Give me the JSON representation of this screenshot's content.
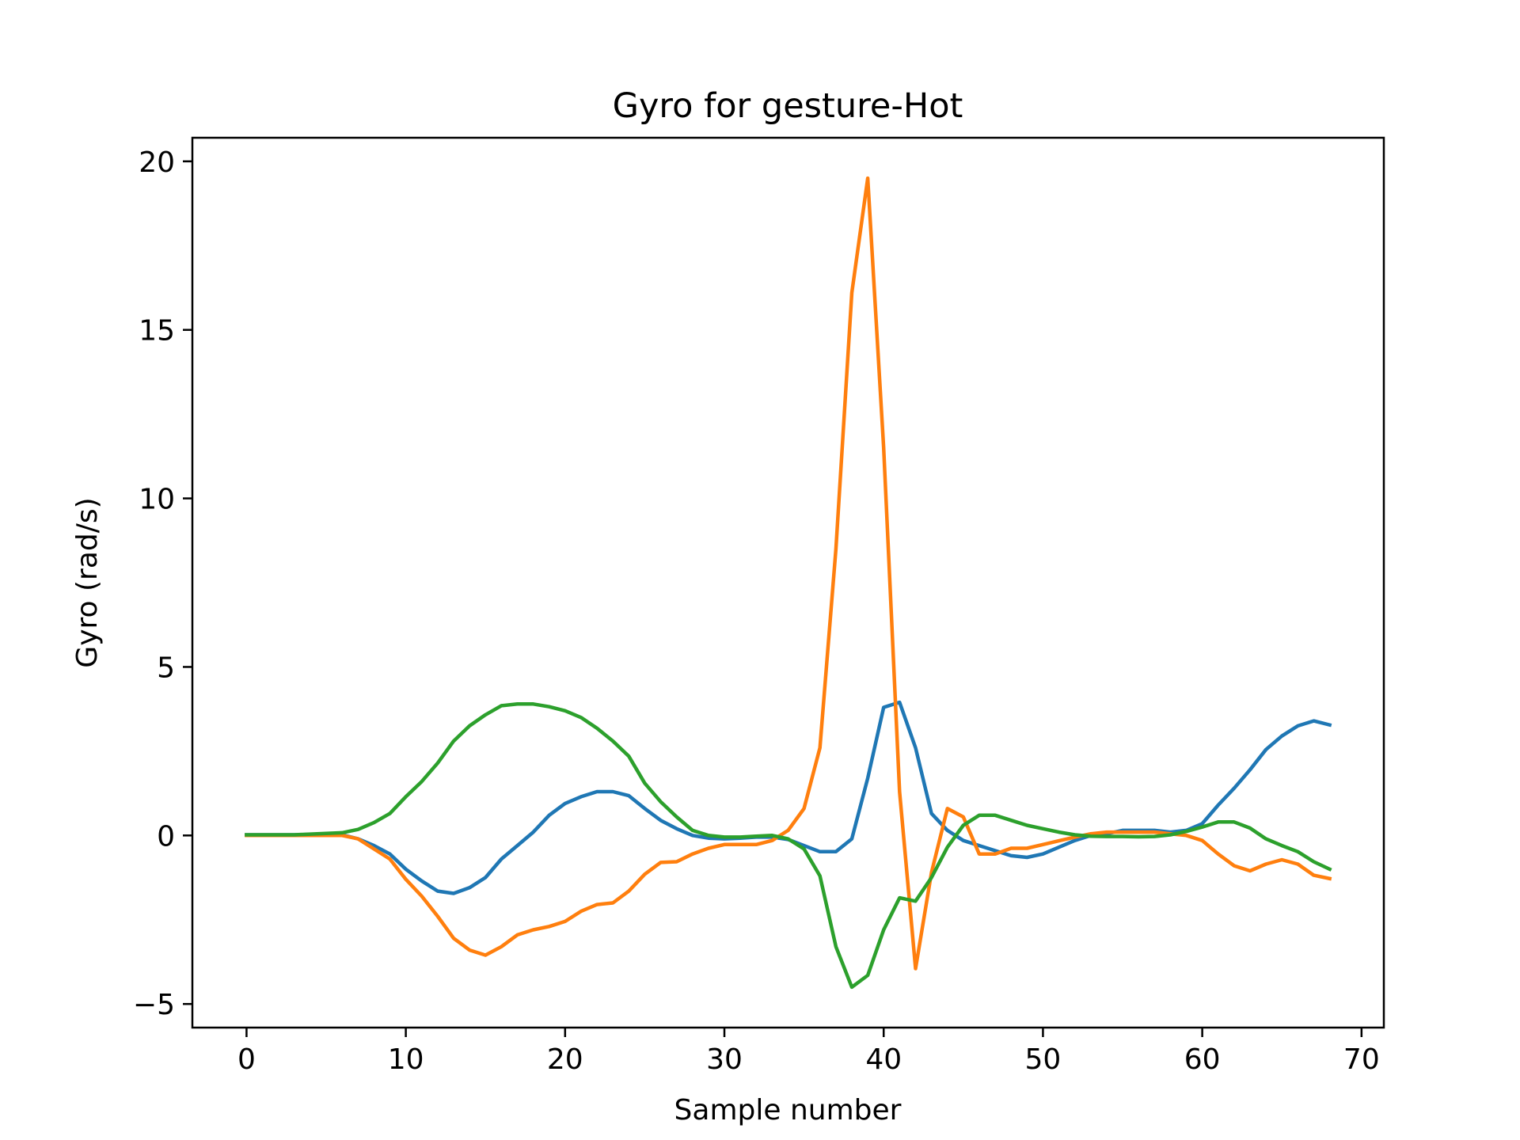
{
  "chart_data": {
    "type": "line",
    "title": "Gyro for gesture-Hot",
    "xlabel": "Sample number",
    "ylabel": "Gyro  (rad/s)",
    "xlim": [
      -3.4,
      71.4
    ],
    "ylim": [
      -5.7,
      20.7
    ],
    "xticks": [
      0,
      10,
      20,
      30,
      40,
      50,
      60,
      70
    ],
    "xtick_labels": [
      "0",
      "10",
      "20",
      "30",
      "40",
      "50",
      "60",
      "70"
    ],
    "yticks": [
      -5,
      0,
      5,
      10,
      15,
      20
    ],
    "ytick_labels": [
      "−5",
      "0",
      "5",
      "10",
      "15",
      "20"
    ],
    "grid": false,
    "x": [
      0,
      1,
      2,
      3,
      4,
      5,
      6,
      7,
      8,
      9,
      10,
      11,
      12,
      13,
      14,
      15,
      16,
      17,
      18,
      19,
      20,
      21,
      22,
      23,
      24,
      25,
      26,
      27,
      28,
      29,
      30,
      31,
      32,
      33,
      34,
      35,
      36,
      37,
      38,
      39,
      40,
      41,
      42,
      43,
      44,
      45,
      46,
      47,
      48,
      49,
      50,
      51,
      52,
      53,
      54,
      55,
      56,
      57,
      58,
      59,
      60,
      61,
      62,
      63,
      64,
      65,
      66,
      67,
      68
    ],
    "series": [
      {
        "color": "#1f77b4",
        "values": [
          0.02,
          0.02,
          0.02,
          0.02,
          0.03,
          0.04,
          0.02,
          -0.1,
          -0.3,
          -0.55,
          -1.0,
          -1.35,
          -1.65,
          -1.72,
          -1.55,
          -1.25,
          -0.7,
          -0.3,
          0.1,
          0.6,
          0.95,
          1.15,
          1.3,
          1.3,
          1.18,
          0.8,
          0.45,
          0.2,
          0.0,
          -0.08,
          -0.1,
          -0.08,
          -0.05,
          -0.05,
          -0.12,
          -0.3,
          -0.48,
          -0.48,
          -0.1,
          1.7,
          3.8,
          3.95,
          2.6,
          0.65,
          0.15,
          -0.15,
          -0.3,
          -0.45,
          -0.6,
          -0.65,
          -0.55,
          -0.35,
          -0.15,
          0.0,
          0.05,
          0.15,
          0.15,
          0.15,
          0.1,
          0.15,
          0.35,
          0.9,
          1.4,
          1.95,
          2.55,
          2.95,
          3.25,
          3.4,
          3.28
        ]
      },
      {
        "color": "#ff7f0e",
        "values": [
          0.0,
          0.0,
          0.0,
          0.0,
          0.0,
          0.0,
          0.0,
          -0.1,
          -0.4,
          -0.7,
          -1.3,
          -1.8,
          -2.4,
          -3.05,
          -3.4,
          -3.55,
          -3.3,
          -2.95,
          -2.8,
          -2.7,
          -2.55,
          -2.25,
          -2.05,
          -2.0,
          -1.65,
          -1.15,
          -0.8,
          -0.78,
          -0.55,
          -0.38,
          -0.27,
          -0.27,
          -0.27,
          -0.15,
          0.15,
          0.8,
          2.6,
          8.5,
          16.1,
          19.5,
          11.5,
          1.3,
          -3.95,
          -1.1,
          0.8,
          0.55,
          -0.55,
          -0.55,
          -0.38,
          -0.38,
          -0.27,
          -0.16,
          -0.05,
          0.05,
          0.1,
          0.1,
          0.1,
          0.1,
          0.05,
          0.0,
          -0.15,
          -0.55,
          -0.9,
          -1.05,
          -0.85,
          -0.72,
          -0.85,
          -1.18,
          -1.28
        ]
      },
      {
        "color": "#2ca02c",
        "values": [
          0.02,
          0.02,
          0.02,
          0.02,
          0.04,
          0.06,
          0.08,
          0.18,
          0.38,
          0.65,
          1.15,
          1.6,
          2.15,
          2.8,
          3.25,
          3.58,
          3.85,
          3.9,
          3.9,
          3.82,
          3.7,
          3.5,
          3.18,
          2.8,
          2.35,
          1.55,
          1.0,
          0.55,
          0.15,
          0.0,
          -0.05,
          -0.05,
          -0.02,
          0.0,
          -0.1,
          -0.4,
          -1.2,
          -3.3,
          -4.5,
          -4.15,
          -2.8,
          -1.85,
          -1.95,
          -1.25,
          -0.35,
          0.3,
          0.6,
          0.6,
          0.45,
          0.3,
          0.2,
          0.1,
          0.02,
          -0.02,
          -0.03,
          -0.03,
          -0.04,
          -0.03,
          0.02,
          0.12,
          0.25,
          0.4,
          0.4,
          0.22,
          -0.1,
          -0.3,
          -0.48,
          -0.78,
          -1.0
        ]
      }
    ]
  }
}
